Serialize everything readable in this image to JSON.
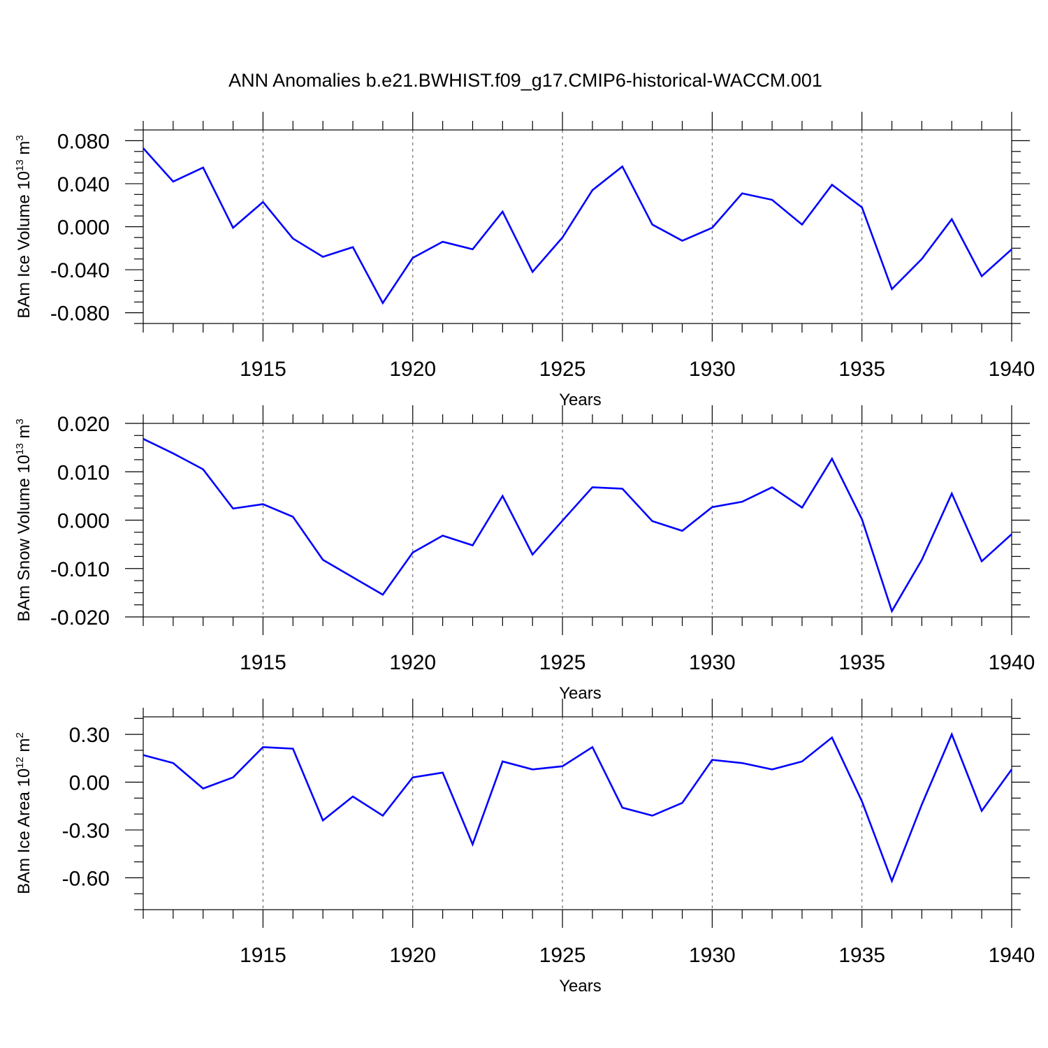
{
  "title": "ANN Anomalies b.e21.BWHIST.f09_g17.CMIP6-historical-WACCM.001",
  "colors": {
    "line": "#0000ff",
    "axis": "#000000"
  },
  "chart_data": [
    {
      "type": "line",
      "ylabel": "BAm Ice Volume 10",
      "ylabel_exp": "13",
      "ylabel_unit": " m",
      "ylabel_unit_exp": "3",
      "xlabel": "Years",
      "xlim": [
        1911,
        1940
      ],
      "ylim": [
        -0.09,
        0.09
      ],
      "x_major_ticks": [
        1915,
        1920,
        1925,
        1930,
        1935,
        1940
      ],
      "x_tick_labels": [
        "1915",
        "1920",
        "1925",
        "1930",
        "1935",
        "1940"
      ],
      "y_major_ticks": [
        -0.08,
        -0.04,
        0.0,
        0.04,
        0.08
      ],
      "y_tick_labels": [
        "-0.080",
        "-0.040",
        "0.000",
        "0.040",
        "0.080"
      ],
      "y_minor_step": 0.01,
      "grid": "dashed vertical at major x ticks",
      "x": [
        1911,
        1912,
        1913,
        1914,
        1915,
        1916,
        1917,
        1918,
        1919,
        1920,
        1921,
        1922,
        1923,
        1924,
        1925,
        1926,
        1927,
        1928,
        1929,
        1930,
        1931,
        1932,
        1933,
        1934,
        1935,
        1936,
        1937,
        1938,
        1939,
        1940
      ],
      "values": [
        0.073,
        0.042,
        0.055,
        -0.001,
        0.023,
        -0.011,
        -0.028,
        -0.019,
        -0.071,
        -0.029,
        -0.014,
        -0.021,
        0.014,
        -0.042,
        -0.01,
        0.034,
        0.056,
        0.002,
        -0.013,
        -0.001,
        0.031,
        0.025,
        0.002,
        0.039,
        0.018,
        -0.058,
        -0.03,
        0.007,
        -0.046,
        -0.021
      ]
    },
    {
      "type": "line",
      "ylabel": "BAm Snow Volume 10",
      "ylabel_exp": "13",
      "ylabel_unit": " m",
      "ylabel_unit_exp": "3",
      "xlabel": "Years",
      "xlim": [
        1911,
        1940
      ],
      "ylim": [
        -0.02,
        0.02
      ],
      "x_major_ticks": [
        1915,
        1920,
        1925,
        1930,
        1935,
        1940
      ],
      "x_tick_labels": [
        "1915",
        "1920",
        "1925",
        "1930",
        "1935",
        "1940"
      ],
      "y_major_ticks": [
        -0.02,
        -0.01,
        0.0,
        0.01,
        0.02
      ],
      "y_tick_labels": [
        "-0.020",
        "-0.010",
        "0.000",
        "0.010",
        "0.020"
      ],
      "y_minor_step": 0.0025,
      "grid": "dashed vertical at major x ticks",
      "x": [
        1911,
        1912,
        1913,
        1914,
        1915,
        1916,
        1917,
        1918,
        1919,
        1920,
        1921,
        1922,
        1923,
        1924,
        1925,
        1926,
        1927,
        1928,
        1929,
        1930,
        1931,
        1932,
        1933,
        1934,
        1935,
        1936,
        1937,
        1938,
        1939,
        1940
      ],
      "values": [
        0.0168,
        0.0138,
        0.0105,
        0.0024,
        0.0033,
        0.0007,
        -0.0082,
        -0.0118,
        -0.0154,
        -0.0067,
        -0.0032,
        -0.0052,
        0.005,
        -0.0071,
        -0.0001,
        0.0068,
        0.0065,
        -0.0002,
        -0.0022,
        0.0027,
        0.0038,
        0.0068,
        0.0026,
        0.0127,
        0.0002,
        -0.0188,
        -0.0082,
        0.0055,
        -0.0085,
        -0.0029
      ]
    },
    {
      "type": "line",
      "ylabel": "BAm Ice Area 10",
      "ylabel_exp": "12",
      "ylabel_unit": " m",
      "ylabel_unit_exp": "2",
      "xlabel": "Years",
      "xlim": [
        1911,
        1940
      ],
      "ylim": [
        -0.8,
        0.41
      ],
      "x_major_ticks": [
        1915,
        1920,
        1925,
        1930,
        1935,
        1940
      ],
      "x_tick_labels": [
        "1915",
        "1920",
        "1925",
        "1930",
        "1935",
        "1940"
      ],
      "y_major_ticks": [
        -0.6,
        -0.3,
        0.0,
        0.3
      ],
      "y_tick_labels": [
        "-0.60",
        "-0.30",
        "0.00",
        "0.30"
      ],
      "y_minor_step": 0.1,
      "grid": "dashed vertical at major x ticks",
      "x": [
        1911,
        1912,
        1913,
        1914,
        1915,
        1916,
        1917,
        1918,
        1919,
        1920,
        1921,
        1922,
        1923,
        1924,
        1925,
        1926,
        1927,
        1928,
        1929,
        1930,
        1931,
        1932,
        1933,
        1934,
        1935,
        1936,
        1937,
        1938,
        1939,
        1940
      ],
      "values": [
        0.17,
        0.12,
        -0.04,
        0.03,
        0.22,
        0.21,
        -0.24,
        -0.09,
        -0.21,
        0.03,
        0.06,
        -0.39,
        0.13,
        0.08,
        0.1,
        0.22,
        -0.16,
        -0.21,
        -0.13,
        0.14,
        0.12,
        0.08,
        0.13,
        0.28,
        -0.12,
        -0.62,
        -0.14,
        0.3,
        -0.18,
        0.08
      ]
    }
  ]
}
